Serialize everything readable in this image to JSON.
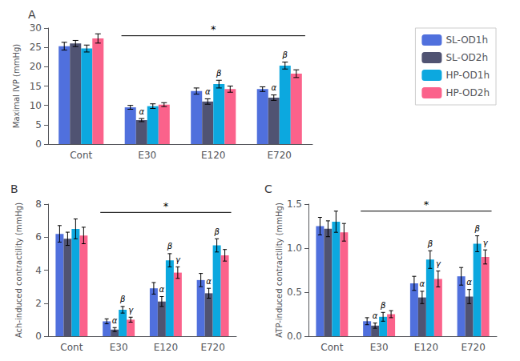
{
  "chart_data": [
    {
      "type": "bar",
      "title": "A",
      "ylabel": "Maximal IVP (mmHg)",
      "categories": [
        "Cont",
        "E30",
        "E120",
        "E720"
      ],
      "series": [
        {
          "name": "SL-OD1h",
          "values": [
            25.3,
            9.5,
            13.7,
            14.2
          ],
          "errors": [
            1.0,
            0.5,
            0.8,
            0.6
          ]
        },
        {
          "name": "SL-OD2h",
          "values": [
            26.0,
            6.2,
            11.0,
            12.0
          ],
          "errors": [
            0.8,
            0.4,
            0.7,
            0.7
          ],
          "annotations": [
            null,
            "α",
            "α",
            "α"
          ]
        },
        {
          "name": "HP-OD1h",
          "values": [
            24.7,
            9.8,
            15.5,
            20.3
          ],
          "errors": [
            0.9,
            0.6,
            1.0,
            0.9
          ],
          "annotations": [
            null,
            null,
            "β",
            "β"
          ]
        },
        {
          "name": "HP-OD2h",
          "values": [
            27.3,
            10.2,
            14.2,
            18.2
          ],
          "errors": [
            1.2,
            0.5,
            0.8,
            1.0
          ]
        }
      ],
      "ylim": [
        0,
        30
      ],
      "yticks": [
        0,
        5,
        10,
        15,
        20,
        25,
        30
      ],
      "grid": false,
      "legend": "upper right",
      "annotations": [
        {
          "text": "*",
          "y": 28.0,
          "from": "E30",
          "to": "E720"
        }
      ]
    },
    {
      "type": "bar",
      "title": "B",
      "ylabel": "Ach-induced contractility (mmHg)",
      "categories": [
        "Cont",
        "E30",
        "E120",
        "E720"
      ],
      "series": [
        {
          "name": "SL-OD1h",
          "values": [
            6.2,
            0.9,
            2.9,
            3.4
          ],
          "errors": [
            0.5,
            0.15,
            0.35,
            0.4
          ]
        },
        {
          "name": "SL-OD2h",
          "values": [
            5.9,
            0.4,
            2.1,
            2.6
          ],
          "errors": [
            0.4,
            0.12,
            0.3,
            0.3
          ],
          "annotations": [
            null,
            "α",
            "α",
            "α"
          ]
        },
        {
          "name": "HP-OD1h",
          "values": [
            6.5,
            1.6,
            4.6,
            5.5
          ],
          "errors": [
            0.6,
            0.2,
            0.4,
            0.4
          ],
          "annotations": [
            null,
            "β",
            "β",
            "β"
          ]
        },
        {
          "name": "HP-OD2h",
          "values": [
            6.1,
            1.0,
            3.85,
            4.9
          ],
          "errors": [
            0.5,
            0.15,
            0.35,
            0.35
          ],
          "annotations": [
            null,
            "γ",
            "γ",
            null
          ]
        }
      ],
      "ylim": [
        0,
        8
      ],
      "yticks": [
        0,
        2,
        4,
        6,
        8
      ],
      "grid": false,
      "annotations": [
        {
          "text": "*",
          "y": 7.5,
          "from": "E30",
          "to": "E720"
        }
      ]
    },
    {
      "type": "bar",
      "title": "C",
      "ylabel": "ATP-induced contractility (mmHg)",
      "categories": [
        "Cont",
        "E30",
        "E120",
        "E720"
      ],
      "series": [
        {
          "name": "SL-OD1h",
          "values": [
            1.25,
            0.17,
            0.6,
            0.68
          ],
          "errors": [
            0.1,
            0.04,
            0.08,
            0.1
          ]
        },
        {
          "name": "SL-OD2h",
          "values": [
            1.22,
            0.12,
            0.44,
            0.45
          ],
          "errors": [
            0.09,
            0.03,
            0.07,
            0.08
          ],
          "annotations": [
            null,
            "α",
            "α",
            "α"
          ]
        },
        {
          "name": "HP-OD1h",
          "values": [
            1.3,
            0.22,
            0.87,
            1.05
          ],
          "errors": [
            0.12,
            0.05,
            0.1,
            0.09
          ],
          "annotations": [
            null,
            "β",
            "β",
            "β"
          ]
        },
        {
          "name": "HP-OD2h",
          "values": [
            1.18,
            0.25,
            0.65,
            0.9
          ],
          "errors": [
            0.1,
            0.04,
            0.09,
            0.08
          ],
          "annotations": [
            null,
            null,
            "γ",
            "γ"
          ]
        }
      ],
      "ylim": [
        0,
        1.5
      ],
      "yticks": [
        {
          "value": 0,
          "label": "0.0"
        },
        0.5,
        {
          "value": 1,
          "label": "1.0"
        },
        1.5
      ],
      "grid": false,
      "annotations": [
        {
          "text": "*",
          "y": 1.42,
          "from": "E30",
          "to": "E720"
        }
      ]
    }
  ]
}
